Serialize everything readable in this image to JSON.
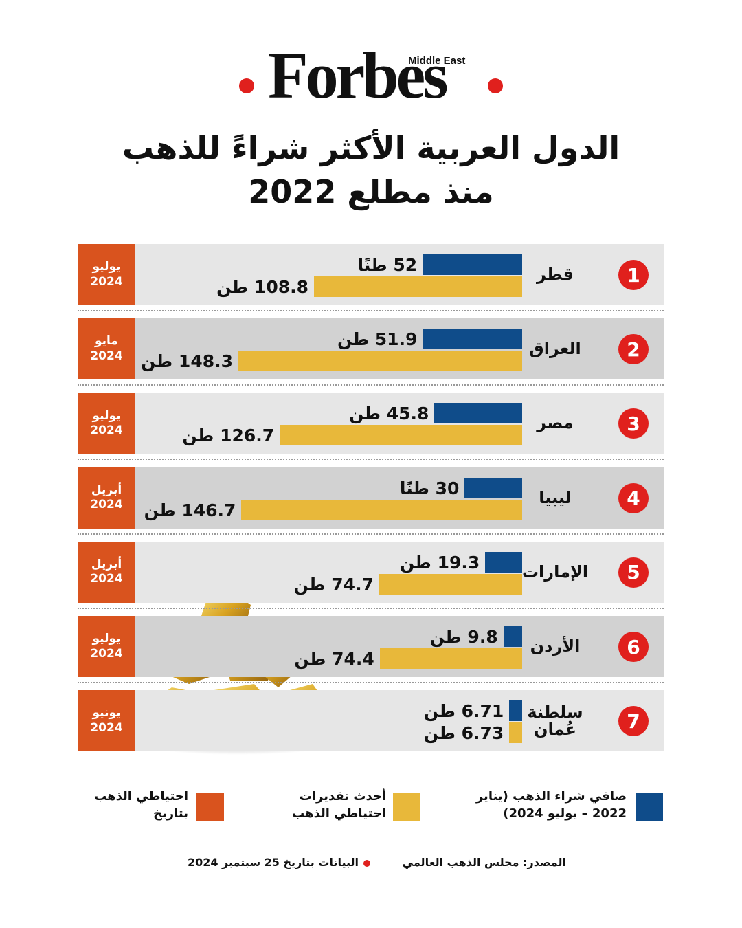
{
  "logo": {
    "brand": "Forbes",
    "edition": "Middle East"
  },
  "chart_data": {
    "type": "bar",
    "title_lines": [
      "الدول العربية الأكثر شراءً للذهب",
      "منذ مطلع 2022"
    ],
    "ranks": [
      "1",
      "2",
      "3",
      "4",
      "5",
      "6",
      "7"
    ],
    "categories": [
      "قطر",
      "العراق",
      "مصر",
      "ليبيا",
      "الإمارات",
      "الأردن",
      "سلطنة عُمان"
    ],
    "dates": [
      "يوليو 2024",
      "مايو 2024",
      "يوليو 2024",
      "أبريل 2024",
      "أبريل 2024",
      "يوليو 2024",
      "يونيو 2024"
    ],
    "date_legend": {
      "name": "احتياطي الذهب بتاريخ",
      "color": "#d9531e"
    },
    "series": [
      {
        "name": "صافي شراء الذهب (يناير 2022 – يوليو 2024)",
        "color": "#0f4c8a",
        "values": [
          52,
          51.9,
          45.8,
          30,
          19.3,
          9.8,
          6.71
        ],
        "value_labels": [
          "52 طنًا",
          "51.9 طن",
          "45.8 طن",
          "30 طنًا",
          "19.3 طن",
          "9.8 طن",
          "6.71 طن"
        ]
      },
      {
        "name": "أحدث تقديرات احتياطي الذهب",
        "color": "#e8b83a",
        "values": [
          108.8,
          148.3,
          126.7,
          146.7,
          74.7,
          74.4,
          6.73
        ],
        "value_labels": [
          "108.8 طن",
          "148.3 طن",
          "126.7 طن",
          "146.7 طن",
          "74.7 طن",
          "74.4 طن",
          "6.73 طن"
        ]
      }
    ]
  },
  "footer": {
    "source": "المصدر: مجلس الذهب العالمي",
    "date_note": "البيانات بتاريخ 25 سبتمبر 2024"
  }
}
